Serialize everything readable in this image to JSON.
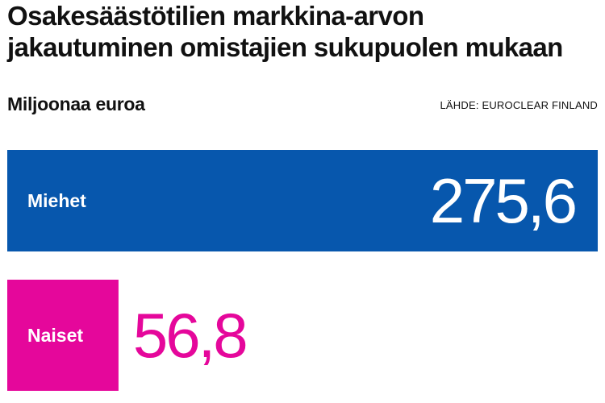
{
  "title_lines": [
    "Osakesäästötilien markkina-arvon",
    "jakautuminen omistajien sukupuolen mukaan"
  ],
  "subtitle": "Miljoonaa euroa",
  "source": "LÄHDE: EUROCLEAR FINLAND",
  "colors": {
    "men": "#0757ad",
    "women": "#e5079b",
    "label_text": "#ffffff"
  },
  "chart_data": {
    "type": "bar",
    "orientation": "horizontal",
    "categories": [
      "Miehet",
      "Naiset"
    ],
    "values": [
      275.6,
      56.8
    ],
    "value_labels": [
      "275,6",
      "56,8"
    ],
    "title": "Osakesäästötilien markkina-arvon jakautuminen omistajien sukupuolen mukaan",
    "subtitle": "Miljoonaa euroa",
    "xlim": [
      0,
      275.6
    ],
    "grid": false,
    "legend": "none"
  }
}
